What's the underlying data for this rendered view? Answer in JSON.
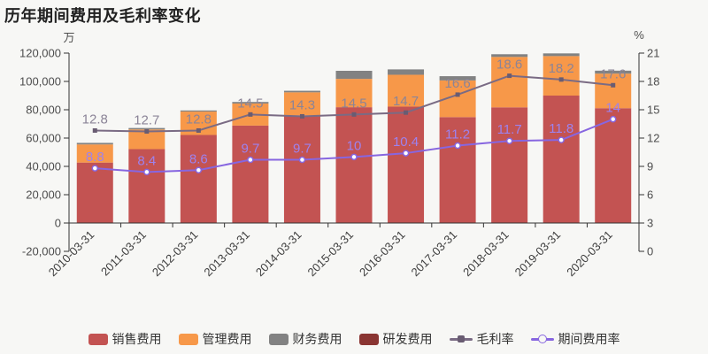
{
  "title": "历年期间费用及毛利率变化",
  "axes": {
    "left_unit": "万",
    "right_unit": "%",
    "left_ticks": [
      "120,000",
      "100,000",
      "80,000",
      "60,000",
      "40,000",
      "20,000",
      "0",
      "-20,000"
    ],
    "right_ticks": [
      "21",
      "18",
      "15",
      "12",
      "9",
      "6",
      "3",
      "0"
    ]
  },
  "colors": {
    "background": "#f7f7f5",
    "axis_line": "#333333",
    "tick_label": "#4d4d4d",
    "x_label": "#3d3d3d",
    "title": "#222222"
  },
  "chart_data": {
    "type": "bar",
    "title": "历年期间费用及毛利率变化",
    "ylabel_left": "万",
    "ylabel_right": "%",
    "ylim_left": [
      -20000,
      120000
    ],
    "ylim_right": [
      0,
      21
    ],
    "grid": false,
    "legend_position": "bottom",
    "categories": [
      "2010-03-31",
      "2011-03-31",
      "2012-03-31",
      "2013-03-31",
      "2014-03-31",
      "2015-03-31",
      "2016-03-31",
      "2017-03-31",
      "2018-03-31",
      "2019-03-31",
      "2020-03-31"
    ],
    "series": [
      {
        "id": "sales-expense",
        "name": "销售费用",
        "type": "bar",
        "stack": true,
        "color": "#c35352",
        "values": [
          42700,
          52200,
          62200,
          68800,
          76100,
          81800,
          82200,
          74800,
          81700,
          90000,
          81100
        ]
      },
      {
        "id": "admin-expense",
        "name": "管理费用",
        "type": "bar",
        "stack": true,
        "color": "#f79849",
        "values": [
          12800,
          13900,
          16500,
          15600,
          16200,
          20000,
          22500,
          25900,
          35600,
          27900,
          24400
        ]
      },
      {
        "id": "finance-expense",
        "name": "财务费用",
        "type": "bar",
        "stack": true,
        "color": "#828282",
        "values": [
          1100,
          1000,
          800,
          1100,
          1100,
          5700,
          3800,
          3000,
          1900,
          1900,
          2100
        ]
      },
      {
        "id": "rd-expense",
        "name": "研发费用",
        "type": "bar",
        "stack": true,
        "color": "#8a3532",
        "values": [
          0,
          0,
          0,
          0,
          0,
          0,
          0,
          0,
          0,
          0,
          0
        ]
      },
      {
        "id": "gross-margin",
        "name": "毛利率",
        "type": "line",
        "axis": "right",
        "color": "#7a6b84",
        "marker": "square",
        "marker_color": "#695c72",
        "label_color": "#8b8497",
        "values": [
          12.8,
          12.7,
          12.8,
          14.5,
          14.3,
          14.5,
          14.7,
          16.6,
          18.6,
          18.2,
          17.6
        ],
        "labels": [
          "12.8",
          "12.7",
          "12.8",
          "14.5",
          "14.3",
          "14.5",
          "14.7",
          "16.6",
          "18.6",
          "18.2",
          "17.6"
        ]
      },
      {
        "id": "expense-ratio",
        "name": "期间费用率",
        "type": "line",
        "axis": "right",
        "color": "#8766e0",
        "marker": "circle",
        "marker_color": "#8766e0",
        "label_color": "#9d82ee",
        "values": [
          8.8,
          8.4,
          8.6,
          9.7,
          9.7,
          10,
          10.4,
          11.2,
          11.7,
          11.8,
          14
        ],
        "labels": [
          "8.8",
          "8.4",
          "8.6",
          "9.7",
          "9.7",
          "10",
          "10.4",
          "11.2",
          "11.7",
          "11.8",
          "14"
        ]
      }
    ]
  },
  "legend": {
    "items": [
      {
        "id": "sales-expense",
        "label": "销售费用",
        "glyph": "rect",
        "color": "#c35352"
      },
      {
        "id": "admin-expense",
        "label": "管理费用",
        "glyph": "rect",
        "color": "#f79849"
      },
      {
        "id": "finance-expense",
        "label": "财务费用",
        "glyph": "rect",
        "color": "#828282"
      },
      {
        "id": "rd-expense",
        "label": "研发费用",
        "glyph": "rect",
        "color": "#8a3532"
      },
      {
        "id": "gross-margin",
        "label": "毛利率",
        "glyph": "line-square",
        "color": "#7a6b84",
        "dot_color": "#695c72"
      },
      {
        "id": "expense-ratio",
        "label": "期间费用率",
        "glyph": "line-circle",
        "color": "#8766e0",
        "dot_color": "#8766e0"
      }
    ]
  }
}
